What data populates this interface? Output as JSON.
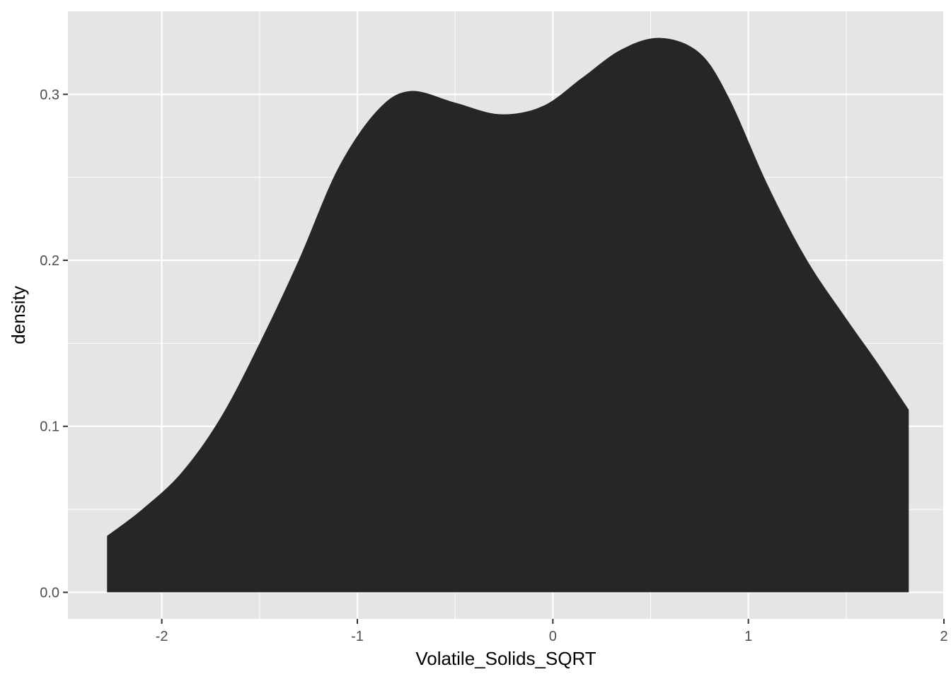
{
  "chart_data": {
    "type": "area",
    "subtype": "density",
    "xlabel": "Volatile_Solids_SQRT",
    "ylabel": "density",
    "xlim": [
      -2.48,
      2.0
    ],
    "ylim": [
      -0.016,
      0.35
    ],
    "x_ticks": [
      -2,
      -1,
      0,
      1,
      2
    ],
    "x_tick_labels": [
      "-2",
      "-1",
      "0",
      "1",
      "2"
    ],
    "x_minor_ticks": [
      -1.5,
      -0.5,
      0.5,
      1.5
    ],
    "y_ticks": [
      0.0,
      0.1,
      0.2,
      0.3
    ],
    "y_tick_labels": [
      "0.0",
      "0.1",
      "0.2",
      "0.3"
    ],
    "y_minor_ticks": [
      0.05,
      0.15,
      0.25
    ],
    "grid": true,
    "legend": "none",
    "colors": {
      "fill": "#262626",
      "panel": "#e5e5e5",
      "grid": "#ffffff"
    },
    "x": [
      -2.28,
      -2.1,
      -1.9,
      -1.7,
      -1.5,
      -1.3,
      -1.1,
      -0.9,
      -0.73,
      -0.5,
      -0.27,
      -0.05,
      0.15,
      0.35,
      0.55,
      0.75,
      0.9,
      1.1,
      1.3,
      1.5,
      1.65,
      1.82
    ],
    "y": [
      0.034,
      0.05,
      0.072,
      0.105,
      0.15,
      0.2,
      0.255,
      0.29,
      0.302,
      0.295,
      0.288,
      0.293,
      0.31,
      0.327,
      0.334,
      0.325,
      0.298,
      0.245,
      0.2,
      0.165,
      0.14,
      0.11
    ]
  }
}
